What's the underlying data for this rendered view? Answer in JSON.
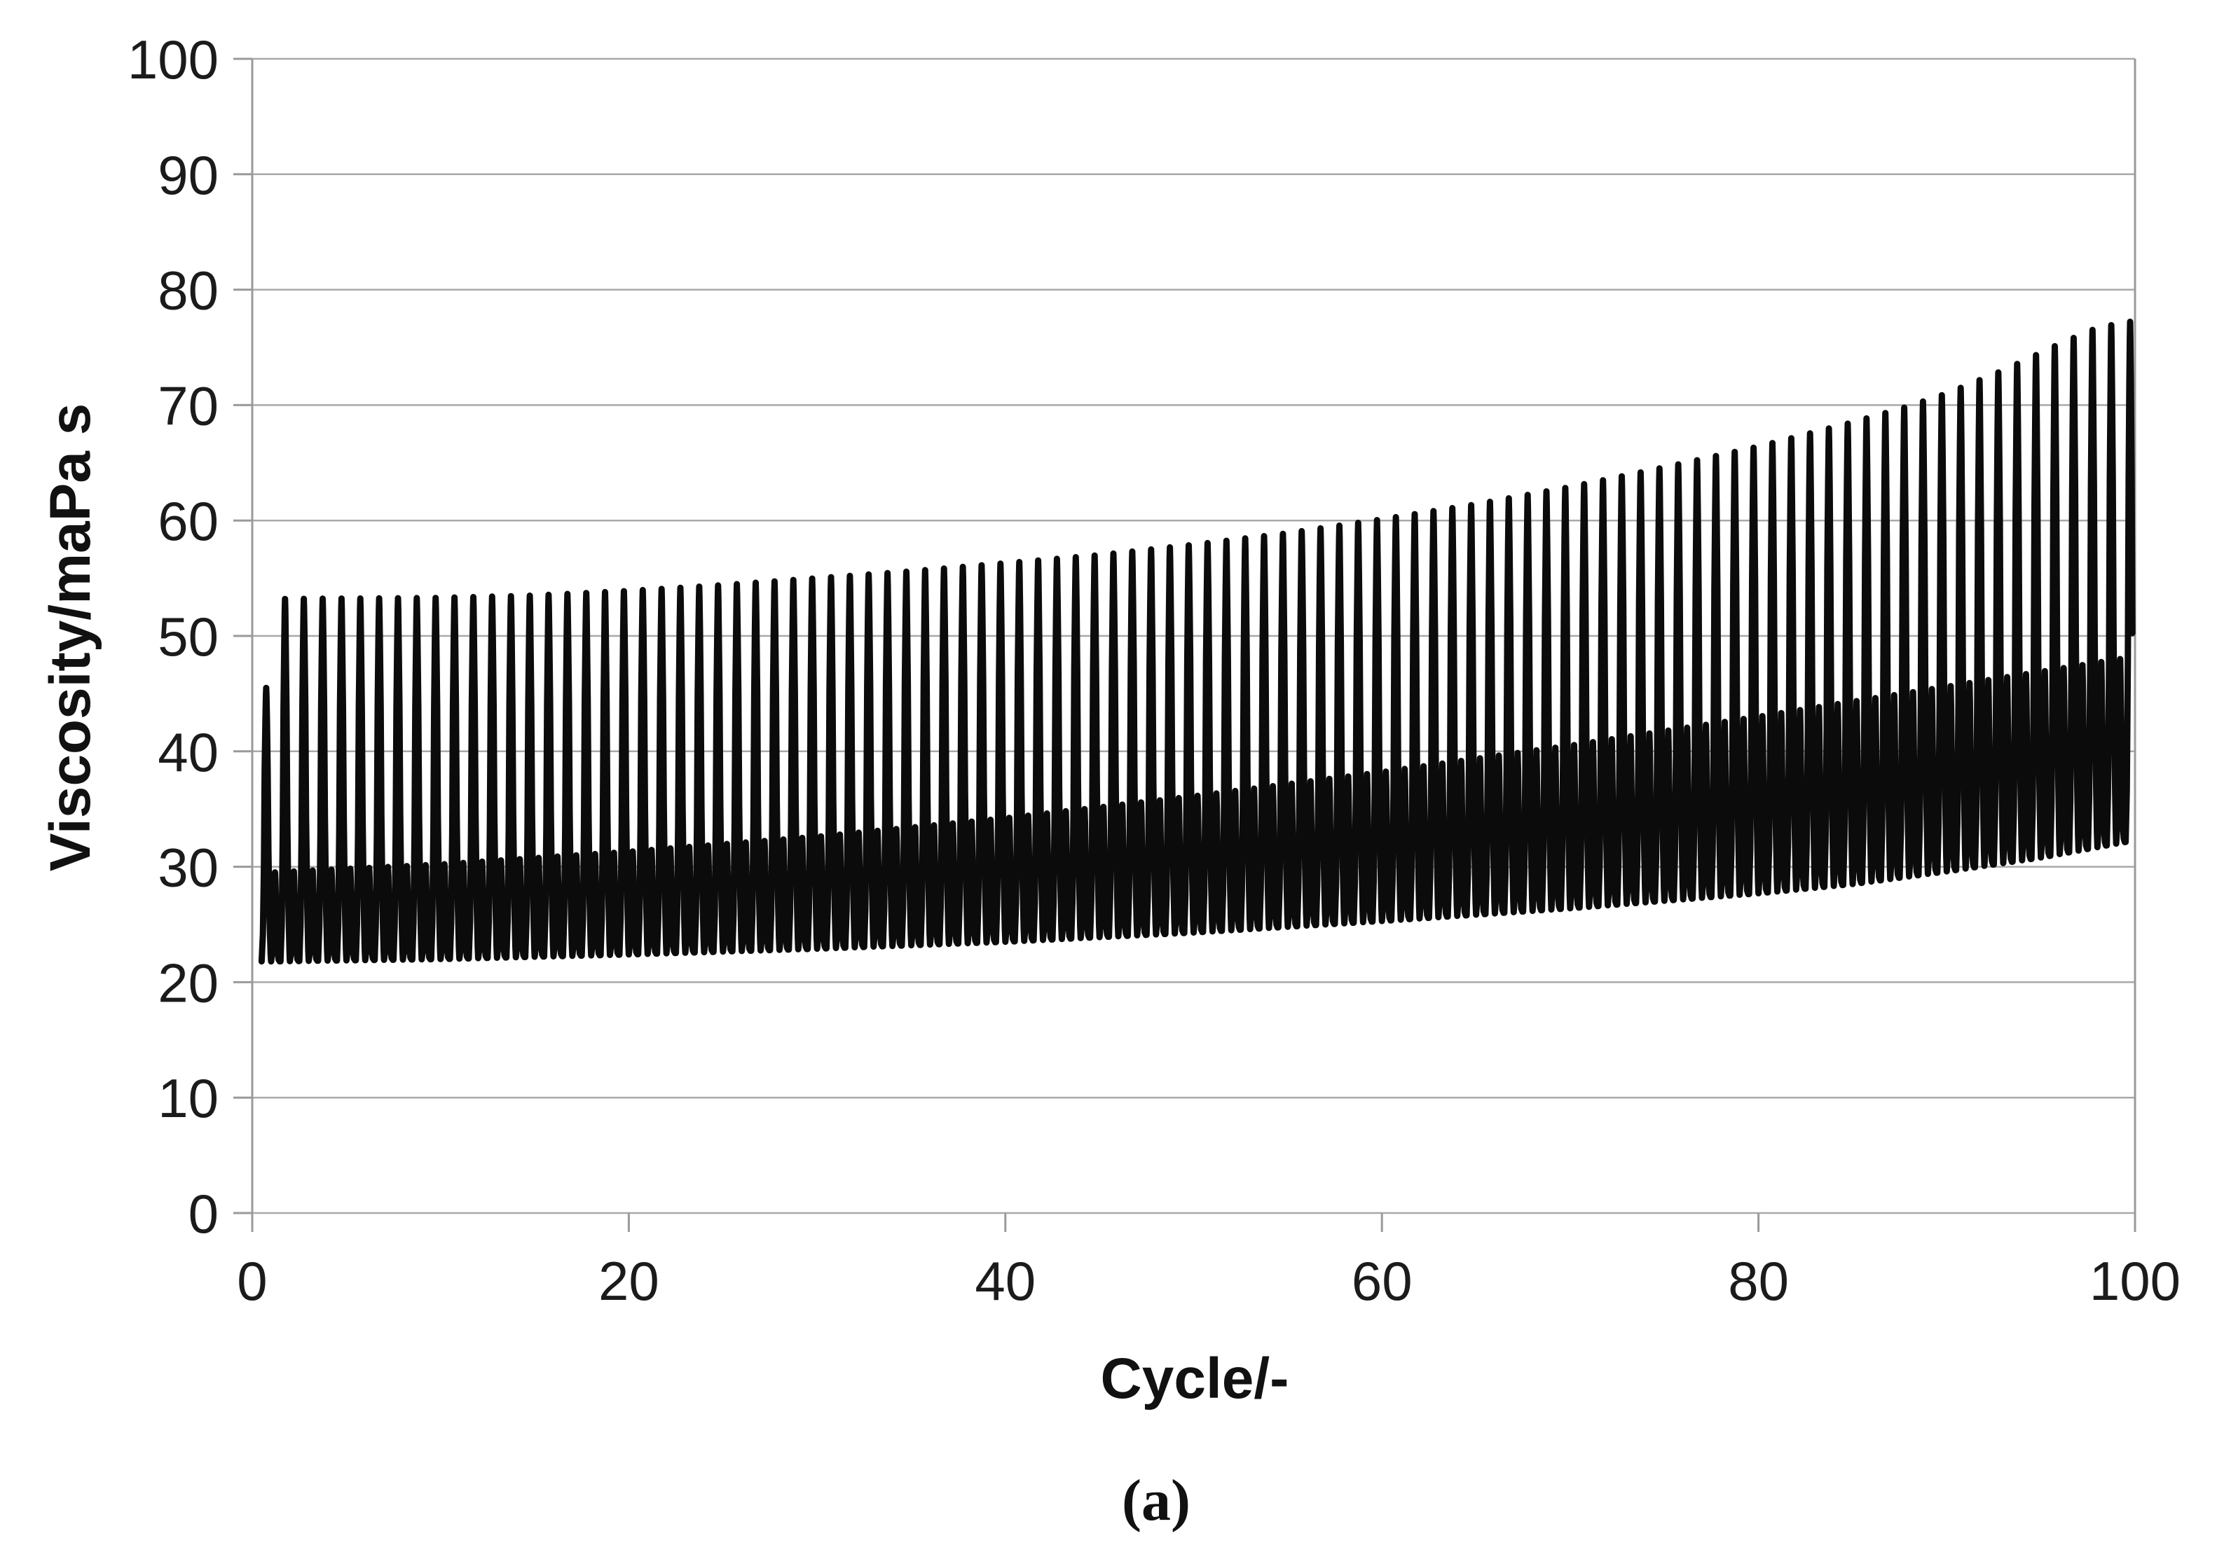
{
  "chart_data": {
    "type": "line",
    "title": "",
    "xlabel": "Cycle/-",
    "ylabel": "Viscosity/maPa s",
    "caption": "(a)",
    "x_axis": {
      "min": 0,
      "max": 100,
      "ticks": [
        0,
        20,
        40,
        60,
        80,
        100
      ]
    },
    "y_axis": {
      "min": 0,
      "max": 100,
      "ticks": [
        0,
        10,
        20,
        30,
        40,
        50,
        60,
        70,
        80,
        90,
        100
      ]
    },
    "legend": "none",
    "grid": "horizontal",
    "colors": {
      "series": "#0b0b0b",
      "grid": "#a9a9a9",
      "axis": "#9a9a9a",
      "text": "#1b1b1b"
    },
    "series": [
      {
        "name": "viscosity",
        "cycles": 100,
        "description": "Viscosity oscillates once per cycle: sharp main peak, fall to baseline minimum, smaller secondary peak, back to minimum. All three envelopes rise with cycle number.",
        "upper_envelope_knots": [
          [
            0.8,
            45.5
          ],
          [
            1.6,
            53.2
          ],
          [
            10,
            53.3
          ],
          [
            15,
            53.5
          ],
          [
            20,
            53.9
          ],
          [
            25,
            54.4
          ],
          [
            30,
            55.0
          ],
          [
            35,
            55.6
          ],
          [
            40,
            56.3
          ],
          [
            45,
            57.0
          ],
          [
            50,
            57.9
          ],
          [
            55,
            58.9
          ],
          [
            60,
            60.1
          ],
          [
            65,
            61.4
          ],
          [
            70,
            62.9
          ],
          [
            75,
            64.6
          ],
          [
            80,
            66.4
          ],
          [
            85,
            68.5
          ],
          [
            88,
            69.9
          ],
          [
            90,
            71.0
          ],
          [
            93,
            73.0
          ],
          [
            96,
            75.3
          ],
          [
            98,
            76.7
          ],
          [
            100,
            77.3
          ]
        ],
        "lower_envelope_knots": [
          [
            1,
            21.8
          ],
          [
            10,
            22.0
          ],
          [
            20,
            22.4
          ],
          [
            30,
            22.9
          ],
          [
            40,
            23.5
          ],
          [
            50,
            24.3
          ],
          [
            60,
            25.3
          ],
          [
            70,
            26.4
          ],
          [
            80,
            27.7
          ],
          [
            85,
            28.5
          ],
          [
            90,
            29.6
          ],
          [
            95,
            30.8
          ],
          [
            100,
            32.3
          ]
        ],
        "secondary_peak_knots": [
          [
            1,
            29.5
          ],
          [
            10,
            30.2
          ],
          [
            20,
            31.3
          ],
          [
            30,
            32.6
          ],
          [
            40,
            34.2
          ],
          [
            50,
            36.1
          ],
          [
            60,
            38.2
          ],
          [
            70,
            40.5
          ],
          [
            80,
            43.0
          ],
          [
            90,
            45.6
          ],
          [
            100,
            48.2
          ]
        ],
        "waveform": {
          "main_apex_phase": 0.74,
          "secondary_apex_phase": 1.21,
          "end_phase": 99.9,
          "samples_main": [
            [
              0.5,
              0.0
            ],
            [
              0.565,
              0.1
            ],
            [
              0.62,
              0.35
            ],
            [
              0.66,
              0.7
            ],
            [
              0.7,
              0.88
            ],
            [
              0.725,
              0.97
            ],
            [
              0.74,
              1.0
            ],
            [
              0.755,
              0.97
            ],
            [
              0.78,
              0.88
            ],
            [
              0.82,
              0.7
            ],
            [
              0.86,
              0.4
            ],
            [
              0.92,
              0.15
            ],
            [
              0.975,
              0.03
            ],
            [
              1.0,
              0.0
            ]
          ],
          "samples_secondary": [
            [
              1.06,
              0.1
            ],
            [
              1.09,
              0.2
            ],
            [
              1.15,
              0.55
            ],
            [
              1.19,
              0.9
            ],
            [
              1.21,
              1.0
            ],
            [
              1.23,
              0.9
            ],
            [
              1.27,
              0.55
            ],
            [
              1.33,
              0.15
            ],
            [
              1.4,
              0.02
            ],
            [
              1.46,
              0.0
            ]
          ]
        },
        "stroke_width": 9
      }
    ]
  }
}
